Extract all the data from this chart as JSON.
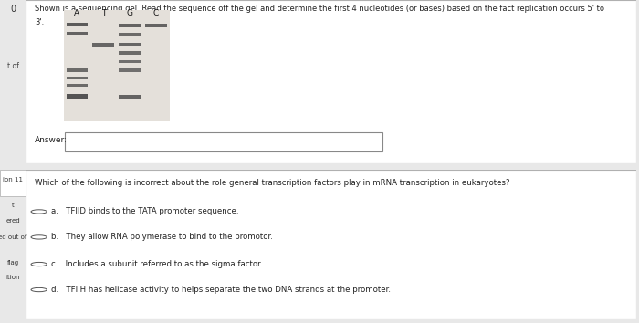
{
  "bg_color": "#e8e8e8",
  "panel1_bg": "#ffffff",
  "panel2_bg": "#ffffff",
  "title_text": "Shown is a sequencing gel. Read the sequence off the gel and determine the first 4 nucleotides (or bases) based on the fact replication occurs 5' to 3'.",
  "gel_labels": [
    "A",
    "T",
    "G",
    "C"
  ],
  "answer_label": "Answer:",
  "question2_text": "Which of the following is incorrect about the role general transcription factors play in mRNA transcription in eukaryotes?",
  "options": [
    "a.   TFIID binds to the TATA promoter sequence.",
    "b.   They allow RNA polymerase to bind to the promotor.",
    "c.   Includes a subunit referred to as the sigma factor.",
    "d.   TFIIH has helicase activity to helps separate the two DNA strands at the promoter."
  ],
  "band_color_dark": "#444444",
  "band_color_mid": "#666666",
  "gel_bg": "#e0ddd8",
  "sidebar_texts_top": [
    "0",
    "t of"
  ],
  "sidebar_texts_bot": [
    "ion 11",
    "t",
    "ered",
    "ed out of",
    "flag",
    "ition"
  ]
}
